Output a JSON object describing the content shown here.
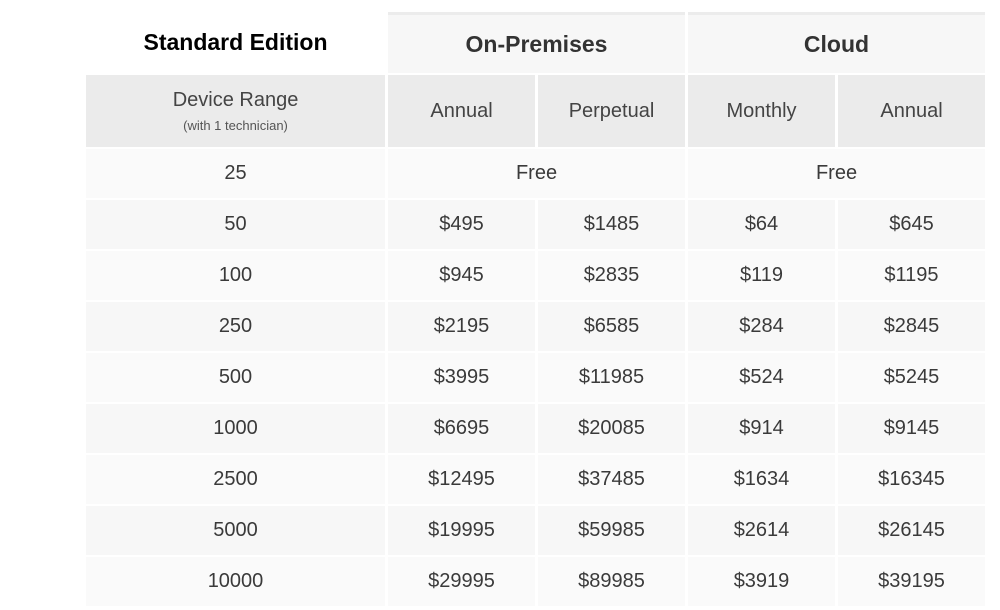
{
  "table": {
    "title": "Standard Edition",
    "groups": [
      "On-Premises",
      "Cloud"
    ],
    "first_col_header": "Device Range",
    "first_col_subheader": "(with 1 technician)",
    "columns": [
      "Annual",
      "Perpetual",
      "Monthly",
      "Annual"
    ],
    "free_row": {
      "devices": "25",
      "on_prem": "Free",
      "cloud": "Free"
    },
    "rows": [
      {
        "devices": "50",
        "onprem_annual": "$495",
        "onprem_perpetual": "$1485",
        "cloud_monthly": "$64",
        "cloud_annual": "$645"
      },
      {
        "devices": "100",
        "onprem_annual": "$945",
        "onprem_perpetual": "$2835",
        "cloud_monthly": "$119",
        "cloud_annual": "$1195"
      },
      {
        "devices": "250",
        "onprem_annual": "$2195",
        "onprem_perpetual": "$6585",
        "cloud_monthly": "$284",
        "cloud_annual": "$2845"
      },
      {
        "devices": "500",
        "onprem_annual": "$3995",
        "onprem_perpetual": "$11985",
        "cloud_monthly": "$524",
        "cloud_annual": "$5245"
      },
      {
        "devices": "1000",
        "onprem_annual": "$6695",
        "onprem_perpetual": "$20085",
        "cloud_monthly": "$914",
        "cloud_annual": "$9145"
      },
      {
        "devices": "2500",
        "onprem_annual": "$12495",
        "onprem_perpetual": "$37485",
        "cloud_monthly": "$1634",
        "cloud_annual": "$16345"
      },
      {
        "devices": "5000",
        "onprem_annual": "$19995",
        "onprem_perpetual": "$59985",
        "cloud_monthly": "$2614",
        "cloud_annual": "$26145"
      },
      {
        "devices": "10000",
        "onprem_annual": "$29995",
        "onprem_perpetual": "$89985",
        "cloud_monthly": "$3919",
        "cloud_annual": "$39195"
      }
    ]
  }
}
